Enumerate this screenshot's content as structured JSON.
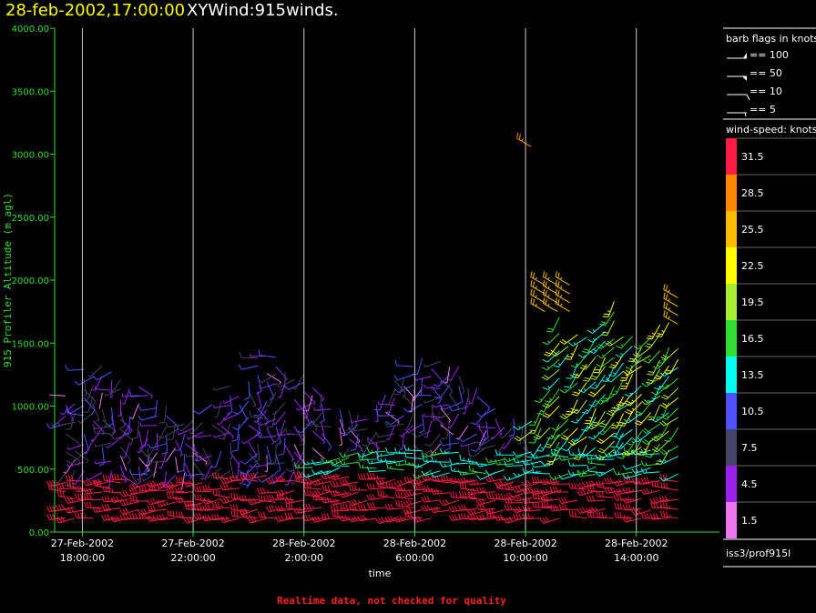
{
  "header": {
    "date_label": "28-feb-2002,17:00:00",
    "title": "XYWind:915winds."
  },
  "footer": {
    "note": "Realtime data, not checked for quality"
  },
  "legend": {
    "barb_title": "barb flags in knots",
    "barbs": [
      {
        "label": "== 100",
        "value": 100
      },
      {
        "label": "== 50",
        "value": 50
      },
      {
        "label": "== 10",
        "value": 10
      },
      {
        "label": "== 5",
        "value": 5
      }
    ],
    "speed_title": "wind-speed: knots",
    "color_scale": [
      {
        "label": "31.5",
        "color": "#ff1c44"
      },
      {
        "label": "28.5",
        "color": "#ff8800"
      },
      {
        "label": "25.5",
        "color": "#ffbb00"
      },
      {
        "label": "22.5",
        "color": "#ffff00"
      },
      {
        "label": "19.5",
        "color": "#aaee33"
      },
      {
        "label": "16.5",
        "color": "#33dd33"
      },
      {
        "label": "13.5",
        "color": "#00ffee"
      },
      {
        "label": "10.5",
        "color": "#5050ff"
      },
      {
        "label": "7.5",
        "color": "#444466"
      },
      {
        "label": "4.5",
        "color": "#9922ee"
      },
      {
        "label": "1.5",
        "color": "#ee77ee"
      }
    ],
    "source": "iss3/prof915l"
  },
  "chart_data": {
    "type": "scatter",
    "ylabel": "915 Profiler Altitude (m agl)",
    "xlabel": "time",
    "ylim": [
      0,
      4000
    ],
    "yticks": [
      "0.00",
      "500.00",
      "1000.00",
      "1500.00",
      "2000.00",
      "2500.00",
      "3000.00",
      "3500.00",
      "4000.00"
    ],
    "xlim_hours_from_first_tick": [
      -1.0,
      23.0
    ],
    "xticks": [
      {
        "line1": "27-Feb-2002",
        "line2": "18:00:00"
      },
      {
        "line1": "27-Feb-2002",
        "line2": "22:00:00"
      },
      {
        "line1": "28-Feb-2002",
        "line2": "2:00:00"
      },
      {
        "line1": "28-Feb-2002",
        "line2": "6:00:00"
      },
      {
        "line1": "28-Feb-2002",
        "line2": "10:00:00"
      },
      {
        "line1": "28-Feb-2002",
        "line2": "14:00:00"
      }
    ],
    "vertical_gridlines": true
  }
}
